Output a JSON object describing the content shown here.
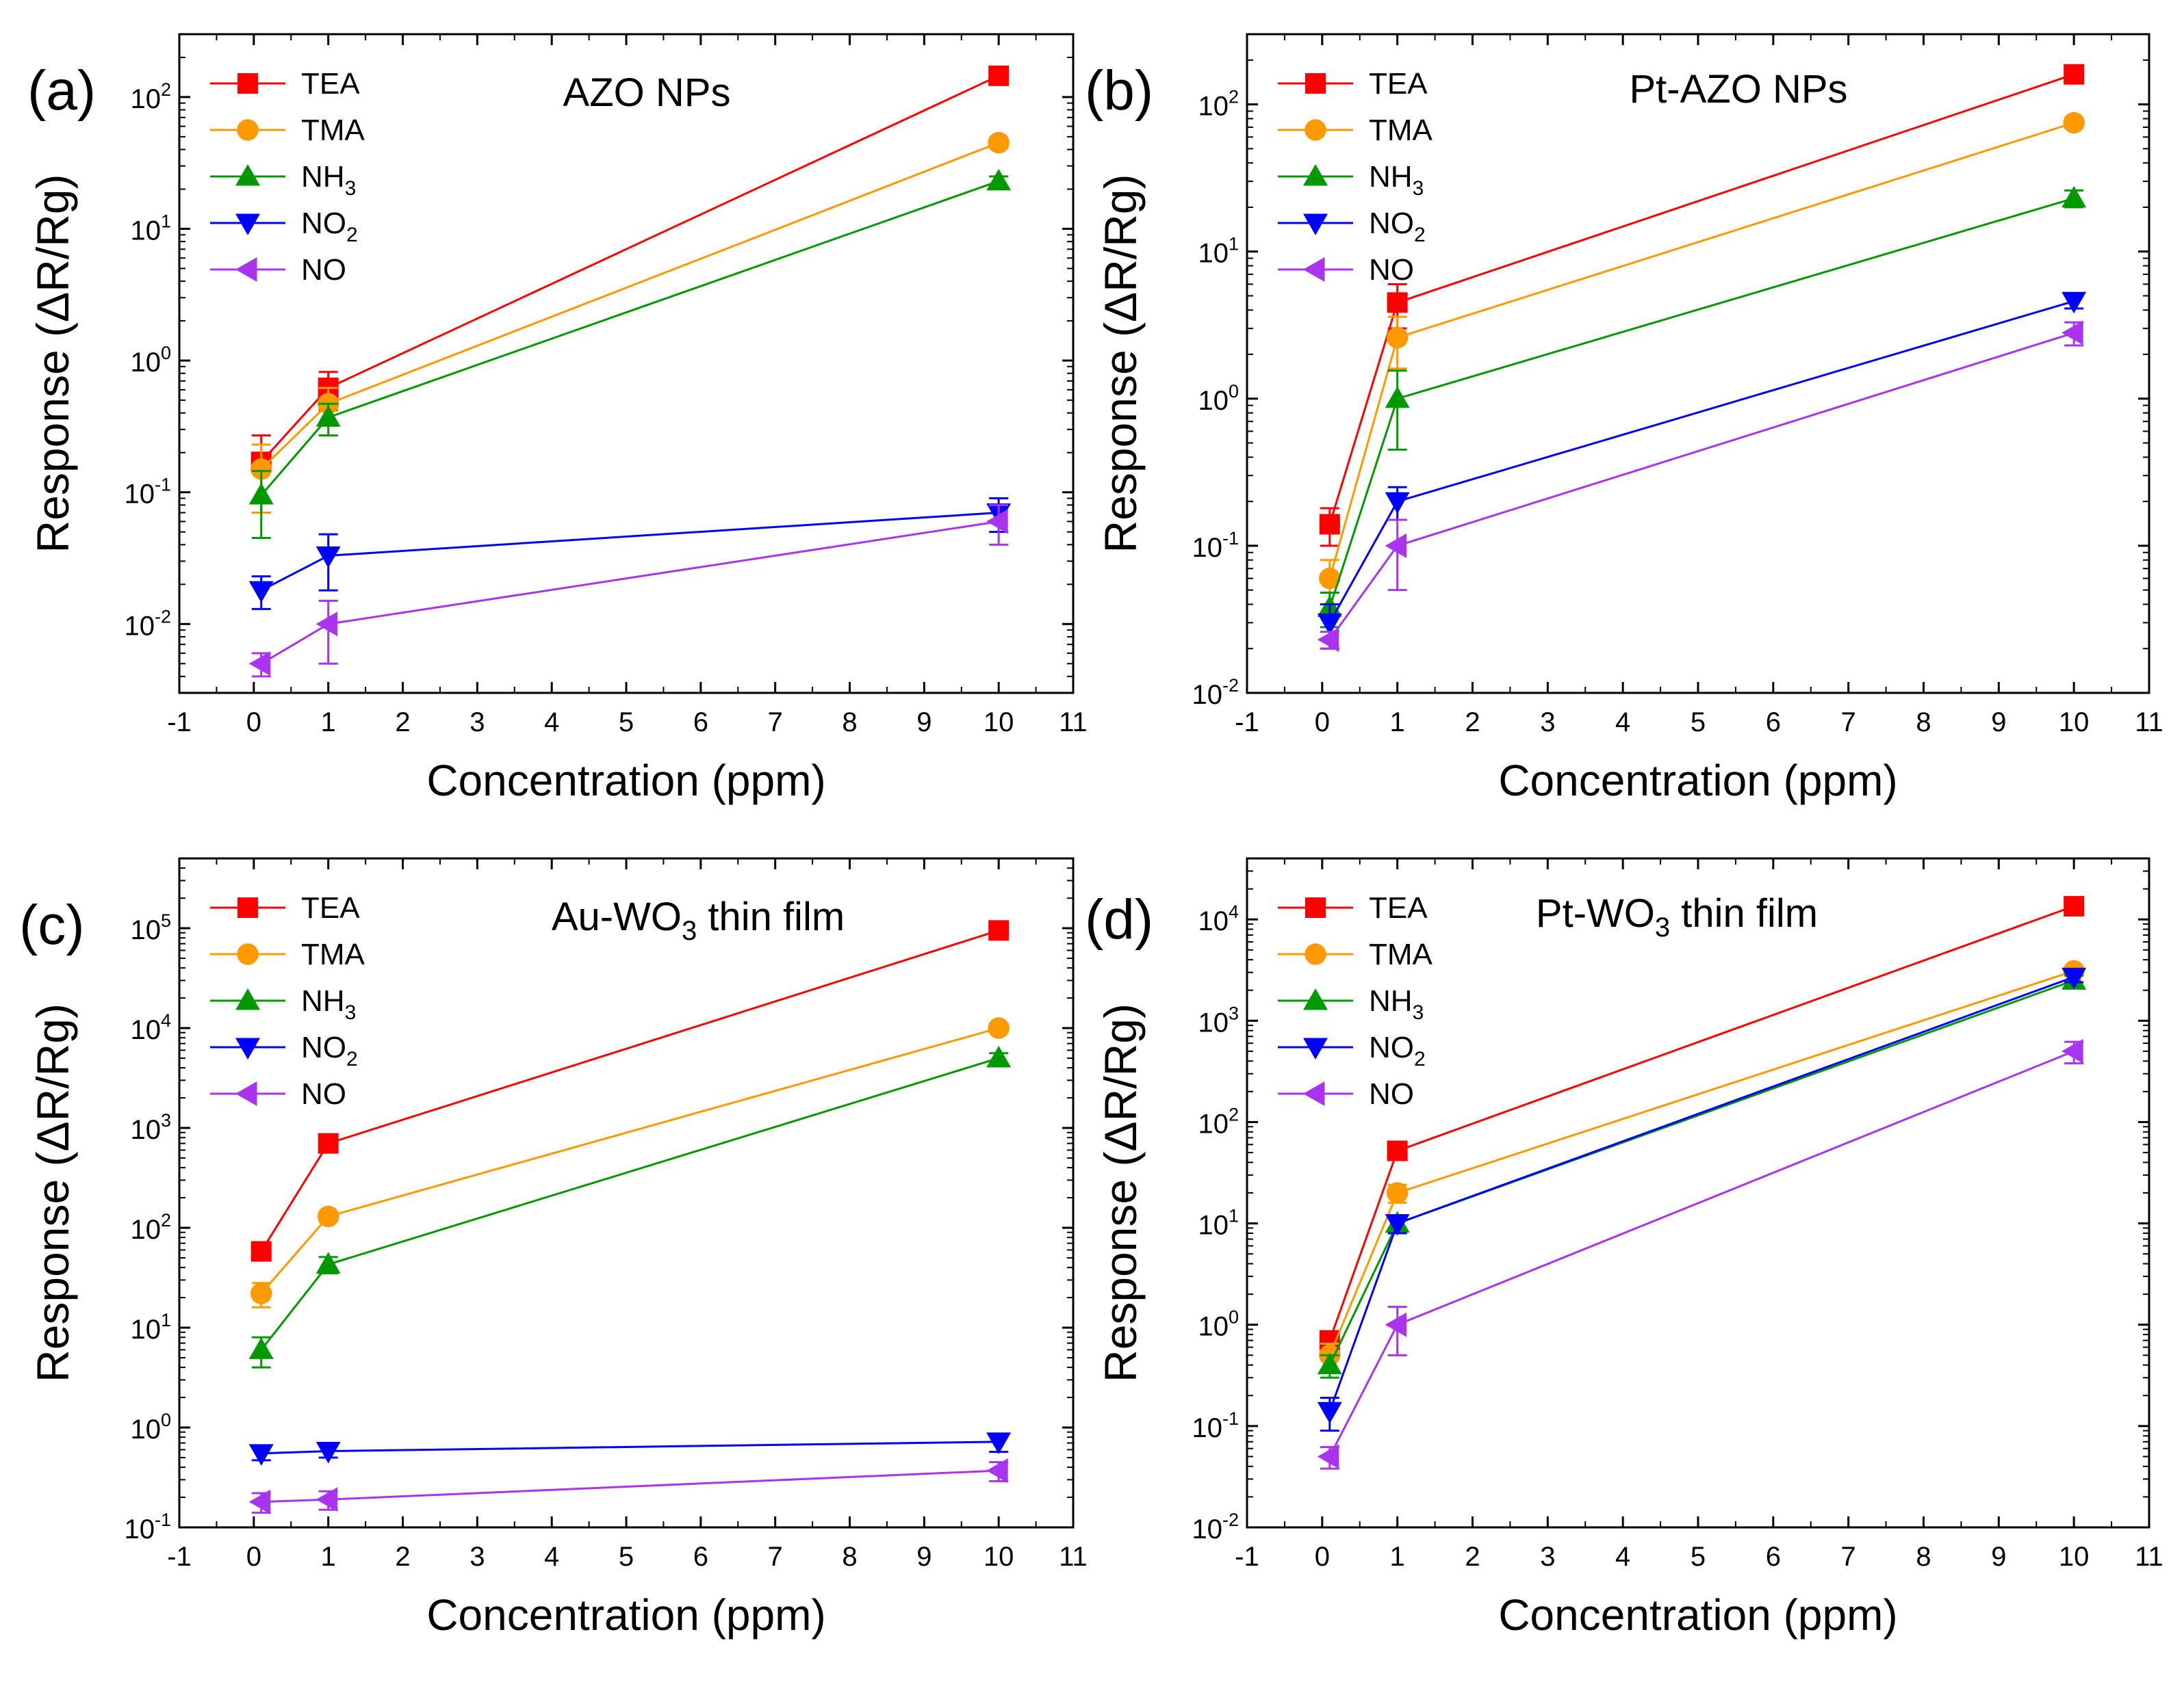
{
  "figure": {
    "colors": {
      "TEA": "#ff0000",
      "TMA": "#ff9900",
      "NH3": "#009900",
      "NO2": "#0000ff",
      "NO": "#aa33ee"
    }
  },
  "chart_data": [
    {
      "panel": "(a)",
      "type": "line",
      "title": "AZO NPs",
      "xlabel": "Concentration (ppm)",
      "ylabel": "Response (ΔR/Rg)",
      "yscale": "log",
      "xlim": [
        -1,
        11
      ],
      "ylim": [
        0.003,
        300
      ],
      "xticks": [
        "-1",
        "0",
        "1",
        "2",
        "3",
        "4",
        "5",
        "6",
        "7",
        "8",
        "9",
        "10",
        "11"
      ],
      "yticks": [
        {
          "base": "10",
          "exp": "-2",
          "value": 0.01
        },
        {
          "base": "10",
          "exp": "-1",
          "value": 0.1
        },
        {
          "base": "10",
          "exp": "0",
          "value": 1
        },
        {
          "base": "10",
          "exp": "1",
          "value": 10
        },
        {
          "base": "10",
          "exp": "2",
          "value": 100
        }
      ],
      "x": [
        0.1,
        1,
        10
      ],
      "series": [
        {
          "name": "TEA",
          "sub": "",
          "key": "TEA",
          "marker": "square",
          "values": [
            0.17,
            0.62,
            145
          ],
          "err": [
            0.1,
            0.2,
            15
          ]
        },
        {
          "name": "TMA",
          "sub": "",
          "key": "TMA",
          "marker": "circle",
          "values": [
            0.15,
            0.47,
            45
          ],
          "err": [
            0.08,
            0.15,
            4
          ]
        },
        {
          "name": "NH",
          "sub": "3",
          "key": "NH3",
          "marker": "triangle-up",
          "values": [
            0.095,
            0.37,
            23
          ],
          "err": [
            0.05,
            0.1,
            2
          ]
        },
        {
          "name": "NO",
          "sub": "2",
          "key": "NO2",
          "marker": "triangle-down",
          "values": [
            0.018,
            0.033,
            0.07
          ],
          "err": [
            0.005,
            0.015,
            0.02
          ]
        },
        {
          "name": "NO",
          "sub": "",
          "key": "NO",
          "marker": "triangle-left",
          "values": [
            0.005,
            0.01,
            0.06
          ],
          "err": [
            0.001,
            0.005,
            0.02
          ]
        }
      ]
    },
    {
      "panel": "(b)",
      "type": "line",
      "title": "Pt-AZO NPs",
      "xlabel": "Concentration (ppm)",
      "ylabel": "Response (ΔR/Rg)",
      "yscale": "log",
      "xlim": [
        -1,
        11
      ],
      "ylim": [
        0.01,
        300
      ],
      "xticks": [
        "-1",
        "0",
        "1",
        "2",
        "3",
        "4",
        "5",
        "6",
        "7",
        "8",
        "9",
        "10",
        "11"
      ],
      "yticks": [
        {
          "base": "10",
          "exp": "-2",
          "value": 0.01
        },
        {
          "base": "10",
          "exp": "-1",
          "value": 0.1
        },
        {
          "base": "10",
          "exp": "0",
          "value": 1
        },
        {
          "base": "10",
          "exp": "1",
          "value": 10
        },
        {
          "base": "10",
          "exp": "2",
          "value": 100
        }
      ],
      "x": [
        0.1,
        1,
        10
      ],
      "series": [
        {
          "name": "TEA",
          "sub": "",
          "key": "TEA",
          "marker": "square",
          "values": [
            0.14,
            4.5,
            160
          ],
          "err": [
            0.04,
            1.5,
            12
          ]
        },
        {
          "name": "TMA",
          "sub": "",
          "key": "TMA",
          "marker": "circle",
          "values": [
            0.06,
            2.6,
            75
          ],
          "err": [
            0.02,
            1,
            6
          ]
        },
        {
          "name": "NH",
          "sub": "3",
          "key": "NH3",
          "marker": "triangle-up",
          "values": [
            0.038,
            1.0,
            23
          ],
          "err": [
            0.01,
            0.55,
            3
          ]
        },
        {
          "name": "NO",
          "sub": "2",
          "key": "NO2",
          "marker": "triangle-down",
          "values": [
            0.03,
            0.2,
            4.6
          ],
          "err": [
            0.01,
            0.05,
            0.5
          ]
        },
        {
          "name": "NO",
          "sub": "",
          "key": "NO",
          "marker": "triangle-left",
          "values": [
            0.023,
            0.1,
            2.8
          ],
          "err": [
            0.003,
            0.05,
            0.5
          ]
        }
      ]
    },
    {
      "panel": "(c)",
      "type": "line",
      "title": "Au-WO3 thin film",
      "xlabel": "Concentration (ppm)",
      "ylabel": "Response (ΔR/Rg)",
      "yscale": "log",
      "xlim": [
        -1,
        11
      ],
      "ylim": [
        0.1,
        500000
      ],
      "xticks": [
        "-1",
        "0",
        "1",
        "2",
        "3",
        "4",
        "5",
        "6",
        "7",
        "8",
        "9",
        "10",
        "11"
      ],
      "yticks": [
        {
          "base": "10",
          "exp": "-1",
          "value": 0.1
        },
        {
          "base": "10",
          "exp": "0",
          "value": 1
        },
        {
          "base": "10",
          "exp": "1",
          "value": 10
        },
        {
          "base": "10",
          "exp": "2",
          "value": 100
        },
        {
          "base": "10",
          "exp": "3",
          "value": 1000
        },
        {
          "base": "10",
          "exp": "4",
          "value": 10000
        },
        {
          "base": "10",
          "exp": "5",
          "value": 100000
        }
      ],
      "x": [
        0.1,
        1,
        10
      ],
      "series": [
        {
          "name": "TEA",
          "sub": "",
          "key": "TEA",
          "marker": "square",
          "values": [
            58,
            700,
            95000
          ],
          "err": [
            8,
            60,
            5000
          ]
        },
        {
          "name": "TMA",
          "sub": "",
          "key": "TMA",
          "marker": "circle",
          "values": [
            22,
            130,
            10000
          ],
          "err": [
            6,
            15,
            800
          ]
        },
        {
          "name": "NH",
          "sub": "3",
          "key": "NH3",
          "marker": "triangle-up",
          "values": [
            6,
            43,
            5000
          ],
          "err": [
            2,
            8,
            600
          ]
        },
        {
          "name": "NO",
          "sub": "2",
          "key": "NO2",
          "marker": "triangle-down",
          "values": [
            0.55,
            0.58,
            0.72
          ],
          "err": [
            0.08,
            0.08,
            0.15
          ]
        },
        {
          "name": "NO",
          "sub": "",
          "key": "NO",
          "marker": "triangle-left",
          "values": [
            0.18,
            0.19,
            0.37
          ],
          "err": [
            0.04,
            0.04,
            0.08
          ]
        }
      ]
    },
    {
      "panel": "(d)",
      "type": "line",
      "title": "Pt-WO3 thin film",
      "xlabel": "Concentration (ppm)",
      "ylabel": "Response (ΔR/Rg)",
      "yscale": "log",
      "xlim": [
        -1,
        11
      ],
      "ylim": [
        0.01,
        40000
      ],
      "xticks": [
        "-1",
        "0",
        "1",
        "2",
        "3",
        "4",
        "5",
        "6",
        "7",
        "8",
        "9",
        "10",
        "11"
      ],
      "yticks": [
        {
          "base": "10",
          "exp": "-2",
          "value": 0.01
        },
        {
          "base": "10",
          "exp": "-1",
          "value": 0.1
        },
        {
          "base": "10",
          "exp": "0",
          "value": 1
        },
        {
          "base": "10",
          "exp": "1",
          "value": 10
        },
        {
          "base": "10",
          "exp": "2",
          "value": 100
        },
        {
          "base": "10",
          "exp": "3",
          "value": 1000
        },
        {
          "base": "10",
          "exp": "4",
          "value": 10000
        }
      ],
      "x": [
        0.1,
        1,
        10
      ],
      "series": [
        {
          "name": "TEA",
          "sub": "",
          "key": "TEA",
          "marker": "square",
          "values": [
            0.7,
            52,
            13500
          ],
          "err": [
            0.15,
            6,
            1000
          ]
        },
        {
          "name": "TMA",
          "sub": "",
          "key": "TMA",
          "marker": "circle",
          "values": [
            0.5,
            20,
            3100
          ],
          "err": [
            0.15,
            4,
            300
          ]
        },
        {
          "name": "NH",
          "sub": "3",
          "key": "NH3",
          "marker": "triangle-up",
          "values": [
            0.4,
            10,
            2500
          ],
          "err": [
            0.1,
            2,
            300
          ]
        },
        {
          "name": "NO",
          "sub": "2",
          "key": "NO2",
          "marker": "triangle-down",
          "values": [
            0.14,
            10,
            2700
          ],
          "err": [
            0.05,
            2,
            300
          ]
        },
        {
          "name": "NO",
          "sub": "",
          "key": "NO",
          "marker": "triangle-left",
          "values": [
            0.05,
            1.0,
            500
          ],
          "err": [
            0.012,
            0.5,
            120
          ]
        }
      ]
    }
  ]
}
